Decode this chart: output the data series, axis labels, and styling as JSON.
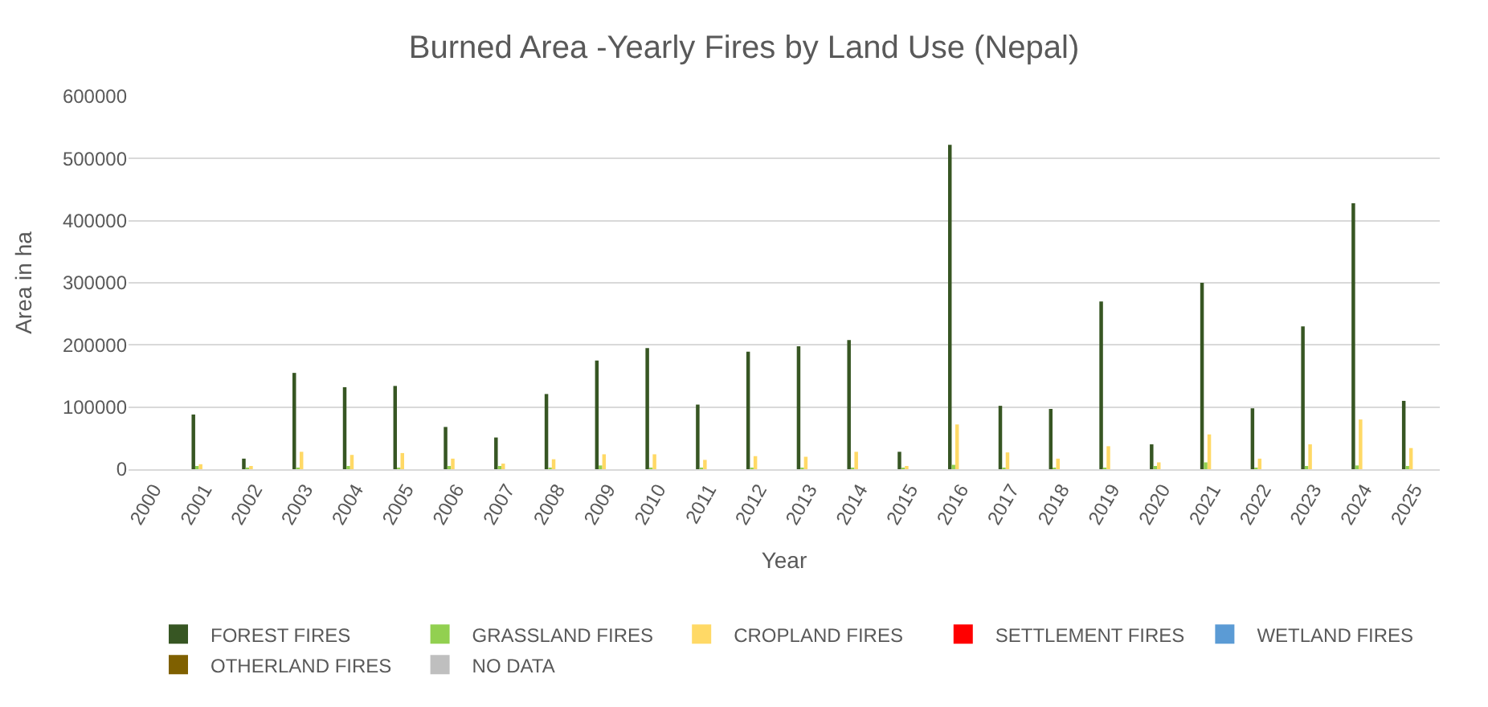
{
  "chart_data": {
    "type": "bar",
    "title": "Burned Area -Yearly Fires by Land Use (Nepal)",
    "xlabel": "Year",
    "ylabel": "Area in ha",
    "categories": [
      "2000",
      "2001",
      "2002",
      "2003",
      "2004",
      "2005",
      "2006",
      "2007",
      "2008",
      "2009",
      "2010",
      "2011",
      "2012",
      "2013",
      "2014",
      "2015",
      "2016",
      "2017",
      "2018",
      "2019",
      "2020",
      "2021",
      "2022",
      "2023",
      "2024",
      "2025"
    ],
    "series": [
      {
        "name": "FOREST FIRES",
        "color": "#375623",
        "values": [
          0,
          88000,
          17000,
          155000,
          132000,
          134000,
          68000,
          51000,
          121000,
          175000,
          195000,
          104000,
          189000,
          198000,
          208000,
          28000,
          522000,
          102000,
          97000,
          270000,
          40000,
          300000,
          98000,
          230000,
          428000,
          110000
        ]
      },
      {
        "name": "GRASSLAND FIRES",
        "color": "#92d050",
        "values": [
          0,
          5000,
          1000,
          2000,
          5000,
          1000,
          3000,
          3000,
          1000,
          6000,
          1000,
          1000,
          1000,
          1000,
          1000,
          1000,
          7000,
          1000,
          2000,
          1000,
          3000,
          11000,
          2000,
          5000,
          6000,
          3000
        ]
      },
      {
        "name": "CROPLAND FIRES",
        "color": "#ffd966",
        "values": [
          0,
          8000,
          3000,
          28000,
          23000,
          26000,
          17000,
          9000,
          16000,
          24000,
          24000,
          15000,
          21000,
          20000,
          28000,
          3000,
          72000,
          27000,
          17000,
          37000,
          11000,
          56000,
          17000,
          40000,
          80000,
          34000
        ]
      },
      {
        "name": "SETTLEMENT FIRES",
        "color": "#ff0000",
        "values": [
          0,
          0,
          0,
          0,
          0,
          0,
          0,
          0,
          0,
          0,
          0,
          0,
          0,
          0,
          0,
          0,
          0,
          0,
          0,
          0,
          0,
          0,
          0,
          0,
          0,
          0
        ]
      },
      {
        "name": "WETLAND FIRES",
        "color": "#5b9bd5",
        "values": [
          0,
          0,
          0,
          0,
          0,
          0,
          0,
          0,
          0,
          0,
          0,
          0,
          0,
          0,
          0,
          0,
          0,
          0,
          0,
          0,
          0,
          0,
          0,
          0,
          0,
          0
        ]
      },
      {
        "name": "OTHERLAND FIRES",
        "color": "#7f6000",
        "values": [
          0,
          0,
          0,
          0,
          0,
          0,
          0,
          0,
          0,
          0,
          0,
          0,
          0,
          0,
          0,
          0,
          0,
          0,
          0,
          0,
          0,
          0,
          0,
          0,
          0,
          0
        ]
      },
      {
        "name": "NO DATA",
        "color": "#bfbfbf",
        "values": [
          0,
          0,
          0,
          0,
          0,
          0,
          0,
          0,
          0,
          0,
          0,
          0,
          0,
          0,
          0,
          0,
          0,
          0,
          0,
          0,
          0,
          0,
          0,
          0,
          0,
          0
        ]
      }
    ],
    "ylim": [
      0,
      600000
    ],
    "yticks": [
      0,
      100000,
      200000,
      300000,
      400000,
      500000,
      600000
    ],
    "grid": "y",
    "legend": "bottom"
  }
}
